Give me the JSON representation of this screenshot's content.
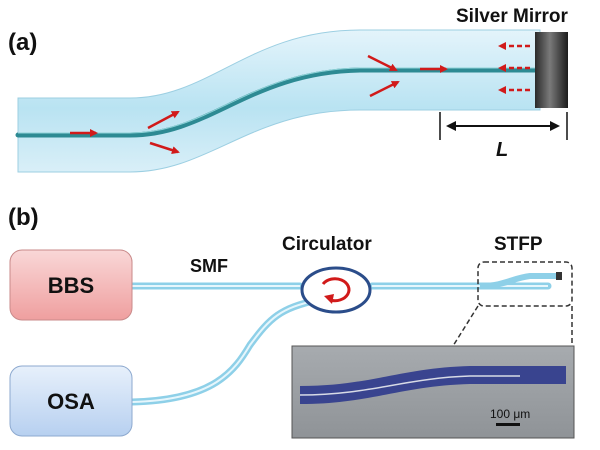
{
  "panel_a": {
    "label": "(a)",
    "mirror_label": "Silver Mirror",
    "length_label": "L"
  },
  "panel_b": {
    "label": "(b)",
    "source_box": "BBS",
    "analyzer_box": "OSA",
    "fiber_label": "SMF",
    "circulator_label": "Circulator",
    "probe_label": "STFP",
    "scale_label": "100 μm"
  },
  "colors": {
    "arrow": "#d11a1a",
    "fiber_core": "#2d8a93",
    "fiber_cladding": "#bfe6f3",
    "bbs_fill": "#f3c1c1",
    "osa_fill": "#cfe1f7",
    "micrograph_bg": "#9a9ea2",
    "micrograph_fiber": "#39448f"
  }
}
